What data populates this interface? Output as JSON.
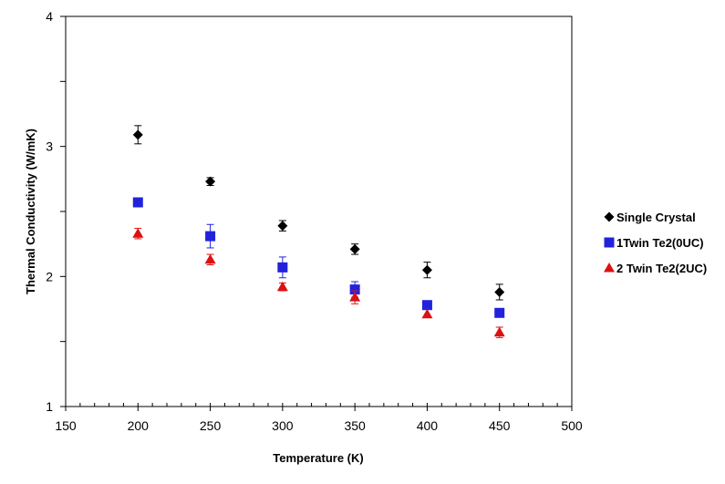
{
  "chart_data": {
    "type": "scatter",
    "title": "",
    "xlabel": "Temperature (K)",
    "ylabel": "Thermal Conductivity (W/mK)",
    "xlim": [
      150,
      500
    ],
    "ylim": [
      1,
      4
    ],
    "x_ticks": [
      150,
      200,
      250,
      300,
      350,
      400,
      450,
      500
    ],
    "y_ticks": [
      1,
      2,
      3,
      4
    ],
    "x_minor_step": 10,
    "grid": false,
    "legend_position": "right",
    "series": [
      {
        "name": "Single Crystal",
        "marker": "diamond",
        "color": "#000000",
        "x": [
          200,
          250,
          300,
          350,
          400,
          450
        ],
        "y": [
          3.09,
          2.73,
          2.39,
          2.21,
          2.05,
          1.88
        ],
        "error": [
          0.07,
          0.03,
          0.04,
          0.04,
          0.06,
          0.06
        ]
      },
      {
        "name": "1Twin Te2(0UC)",
        "marker": "square",
        "color": "#2222dd",
        "x": [
          200,
          250,
          300,
          350,
          400,
          450
        ],
        "y": [
          2.57,
          2.31,
          2.07,
          1.9,
          1.78,
          1.72
        ],
        "error": [
          0.0,
          0.09,
          0.08,
          0.06,
          0.0,
          0.03
        ]
      },
      {
        "name": "2 Twin Te2(2UC)",
        "marker": "triangle",
        "color": "#dd1111",
        "x": [
          200,
          250,
          300,
          350,
          400,
          450
        ],
        "y": [
          2.33,
          2.13,
          1.92,
          1.84,
          1.71,
          1.57
        ],
        "error": [
          0.04,
          0.04,
          0.03,
          0.05,
          0.0,
          0.04
        ]
      }
    ]
  }
}
